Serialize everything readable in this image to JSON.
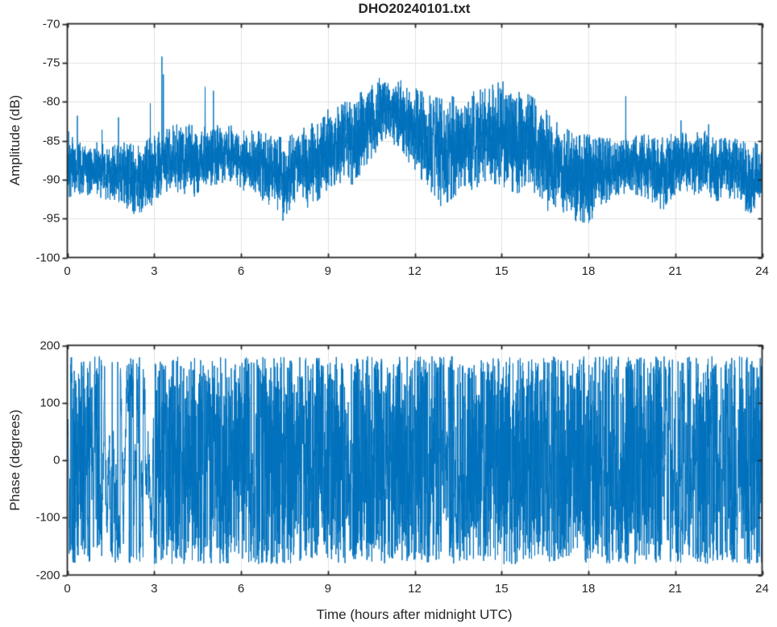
{
  "figure": {
    "title": "DHO20240101.txt",
    "background": "#ffffff"
  },
  "colors": {
    "line": "#0072BD",
    "grid": "#e2e2e2",
    "axis": "#262626",
    "text": "#262626"
  },
  "chart_data": [
    {
      "type": "line",
      "title": "DHO20240101.txt",
      "xlabel": "",
      "ylabel": "Amplitude (dB)",
      "xlim": [
        0,
        24
      ],
      "ylim": [
        -100,
        -70
      ],
      "xticks": [
        0,
        3,
        6,
        9,
        12,
        15,
        18,
        21,
        24
      ],
      "yticks": [
        -100,
        -95,
        -90,
        -85,
        -80,
        -75,
        -70
      ],
      "grid": true,
      "legend": "none",
      "description": "Dense 24 h noisy VLF amplitude record; band of noise whose envelope is tabulated below, with narrow spikes and dips superimposed.",
      "envelope": {
        "t": [
          0,
          0.5,
          1,
          1.5,
          2,
          2.5,
          3,
          3.5,
          4,
          4.5,
          5,
          5.5,
          6,
          6.5,
          7,
          7.5,
          8,
          8.5,
          9,
          9.5,
          10,
          10.5,
          11.1,
          11.5,
          12,
          12.5,
          13,
          13.5,
          14,
          14.5,
          15,
          15.5,
          16,
          16.5,
          17,
          17.5,
          18,
          18.5,
          19,
          19.5,
          20,
          20.5,
          21,
          21.5,
          22,
          22.5,
          23,
          23.5,
          24
        ],
        "hi": [
          -84.5,
          -85.5,
          -85.5,
          -86,
          -85.5,
          -86,
          -84.5,
          -83.5,
          -83,
          -83.5,
          -83.5,
          -83,
          -84,
          -84,
          -84.5,
          -85,
          -84,
          -83,
          -82,
          -80.5,
          -79.5,
          -78,
          -76.4,
          -77.5,
          -78.5,
          -79.5,
          -80,
          -79.5,
          -79,
          -78.5,
          -77.5,
          -78.5,
          -79.5,
          -81,
          -83,
          -84.5,
          -84.5,
          -85,
          -85,
          -84.5,
          -84.5,
          -85,
          -84,
          -84.5,
          -84,
          -85,
          -85,
          -85.5,
          -85
        ],
        "lo": [
          -92,
          -91.5,
          -92,
          -92.5,
          -93.5,
          -94,
          -93,
          -91,
          -91.5,
          -92,
          -90.5,
          -90,
          -91,
          -92,
          -93,
          -94.5,
          -92,
          -93,
          -91,
          -90,
          -90.5,
          -87,
          -84.5,
          -86,
          -88.5,
          -91,
          -93,
          -91.5,
          -91,
          -90,
          -90.5,
          -91.5,
          -91,
          -92.5,
          -93.5,
          -95,
          -95.3,
          -93.5,
          -92,
          -91.5,
          -92,
          -93.5,
          -92,
          -91.5,
          -92,
          -92.5,
          -92,
          -94,
          -93.5
        ]
      },
      "spikes": [
        {
          "t": 0.05,
          "v": -83.8
        },
        {
          "t": 0.35,
          "v": -81.8
        },
        {
          "t": 1.2,
          "v": -83.6
        },
        {
          "t": 1.77,
          "v": -82.0
        },
        {
          "t": 2.87,
          "v": -80.2
        },
        {
          "t": 3.27,
          "v": -74.2
        },
        {
          "t": 3.32,
          "v": -76.5
        },
        {
          "t": 4.76,
          "v": -78.1
        },
        {
          "t": 5.05,
          "v": -78.6
        },
        {
          "t": 9.0,
          "v": -81.0
        },
        {
          "t": 13.3,
          "v": -79.3
        },
        {
          "t": 15.05,
          "v": -77.4
        },
        {
          "t": 19.29,
          "v": -79.3
        },
        {
          "t": 21.2,
          "v": -82.4
        },
        {
          "t": 22.15,
          "v": -82.9
        }
      ],
      "dips": [
        {
          "t": 2.3,
          "v": -94.4
        },
        {
          "t": 7.45,
          "v": -95.3
        },
        {
          "t": 8.3,
          "v": -93.6
        },
        {
          "t": 12.9,
          "v": -93.4
        },
        {
          "t": 16.6,
          "v": -94.0
        },
        {
          "t": 17.8,
          "v": -95.5
        },
        {
          "t": 18.05,
          "v": -95.2
        },
        {
          "t": 20.6,
          "v": -93.8
        },
        {
          "t": 23.6,
          "v": -94.3
        }
      ],
      "noise_seed": 42,
      "samples": 6000
    },
    {
      "type": "line",
      "title": "",
      "xlabel": "Time (hours after midnight UTC)",
      "ylabel": "Phase (degrees)",
      "xlim": [
        0,
        24
      ],
      "ylim": [
        -200,
        200
      ],
      "xticks": [
        0,
        3,
        6,
        9,
        12,
        15,
        18,
        21,
        24
      ],
      "yticks": [
        -200,
        -100,
        0,
        100,
        200
      ],
      "grid": true,
      "legend": "none",
      "description": "Phase wrapped to +/-181 deg; random-walk wander with frequent wrap-around producing full-span vertical excursions; per-interval step amplitude tabulated below.",
      "start_value": 140,
      "wrap_limit": 181,
      "walk_segments": [
        {
          "t0": 0.0,
          "t1": 0.18,
          "step": 45
        },
        {
          "t0": 0.18,
          "t1": 0.6,
          "step": 150
        },
        {
          "t0": 0.6,
          "t1": 1.1,
          "step": 80
        },
        {
          "t0": 1.1,
          "t1": 3.05,
          "step": 42
        },
        {
          "t0": 3.05,
          "t1": 4.65,
          "step": 155
        },
        {
          "t0": 4.65,
          "t1": 5.2,
          "step": 85
        },
        {
          "t0": 5.2,
          "t1": 6.25,
          "step": 150
        },
        {
          "t0": 6.25,
          "t1": 6.9,
          "step": 75
        },
        {
          "t0": 6.9,
          "t1": 8.0,
          "step": 145
        },
        {
          "t0": 8.0,
          "t1": 8.6,
          "step": 95
        },
        {
          "t0": 8.6,
          "t1": 9.6,
          "step": 150
        },
        {
          "t0": 9.6,
          "t1": 10.1,
          "step": 80
        },
        {
          "t0": 10.1,
          "t1": 12.3,
          "step": 150
        },
        {
          "t0": 12.3,
          "t1": 12.7,
          "step": 95
        },
        {
          "t0": 12.7,
          "t1": 13.8,
          "step": 70
        },
        {
          "t0": 13.8,
          "t1": 16.3,
          "step": 145
        },
        {
          "t0": 16.3,
          "t1": 17.1,
          "step": 95
        },
        {
          "t0": 17.1,
          "t1": 18.4,
          "step": 150
        },
        {
          "t0": 18.4,
          "t1": 19.1,
          "step": 85
        },
        {
          "t0": 19.1,
          "t1": 20.5,
          "step": 145
        },
        {
          "t0": 20.5,
          "t1": 21.7,
          "step": 65
        },
        {
          "t0": 21.7,
          "t1": 22.4,
          "step": 130
        },
        {
          "t0": 22.4,
          "t1": 23.2,
          "step": 70
        },
        {
          "t0": 23.2,
          "t1": 24.0,
          "step": 125
        }
      ],
      "noise_seed": 7,
      "samples": 5200
    }
  ]
}
